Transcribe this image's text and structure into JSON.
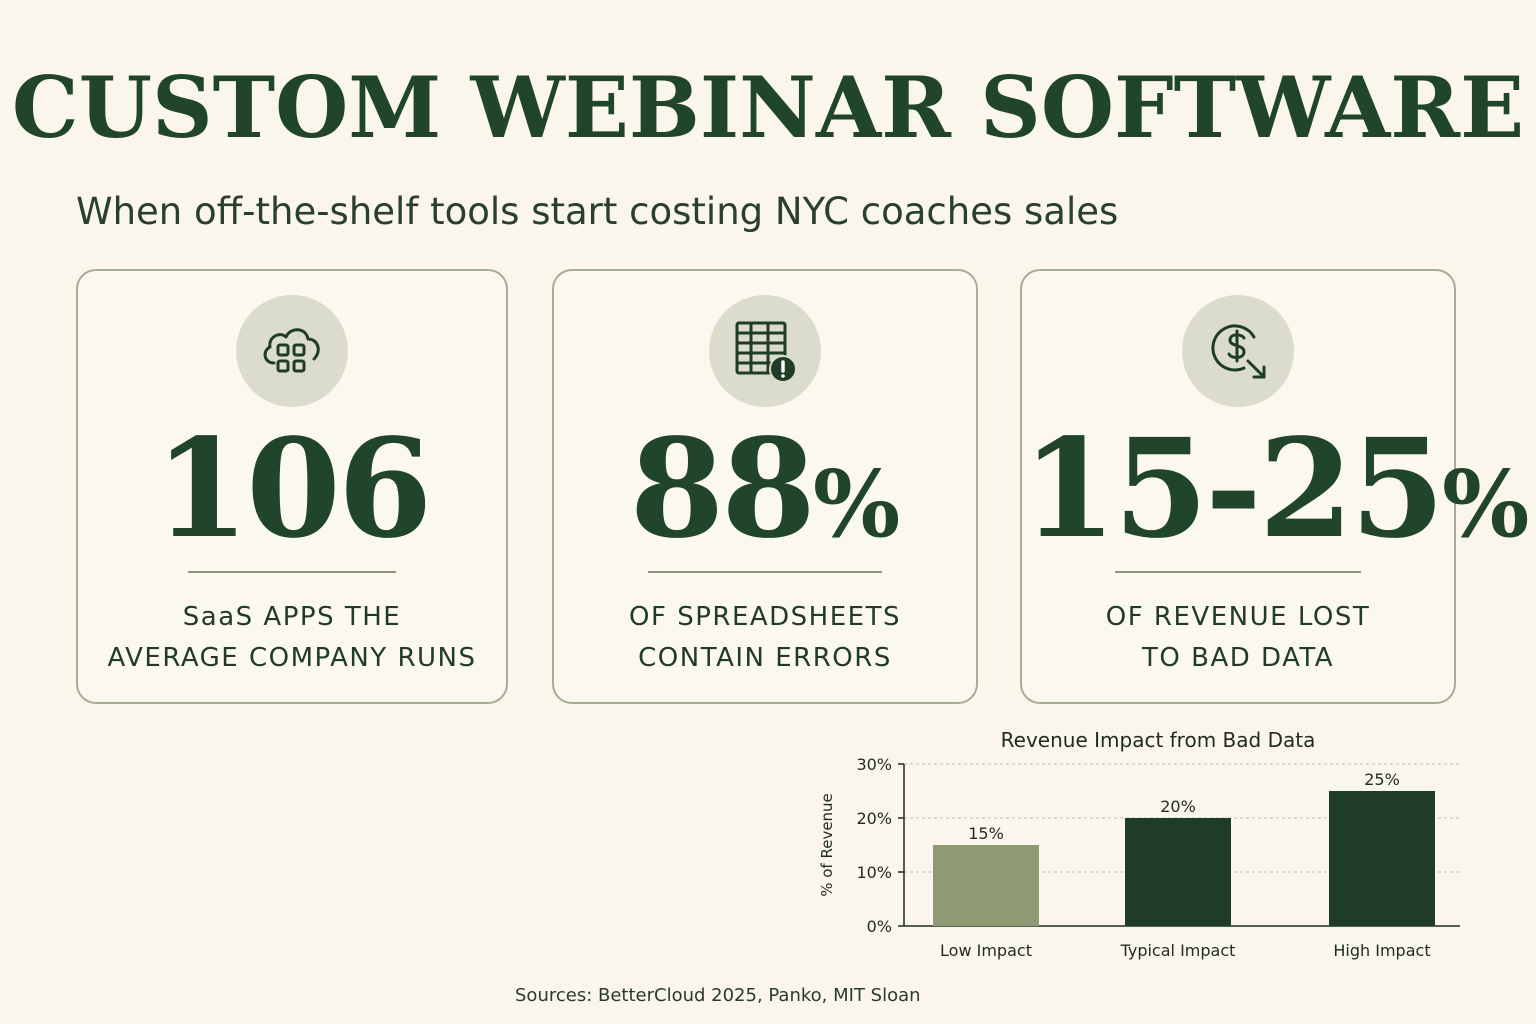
{
  "header": {
    "title": "CUSTOM WEBINAR SOFTWARE",
    "subtitle": "When off-the-shelf tools start costing NYC coaches sales"
  },
  "cards": [
    {
      "icon": "cloud-apps-icon",
      "value": "106",
      "suffix": "",
      "line1": "SaaS APPS THE",
      "line2": "AVERAGE COMPANY RUNS"
    },
    {
      "icon": "spreadsheet-error-icon",
      "value": "88",
      "suffix": "%",
      "line1": "OF SPREADSHEETS",
      "line2": "CONTAIN ERRORS"
    },
    {
      "icon": "dollar-decline-icon",
      "value": "15-25",
      "suffix": "%",
      "line1": "OF REVENUE LOST",
      "line2": "TO BAD DATA"
    }
  ],
  "colors": {
    "primary": "#20452a",
    "accent_light": "#8d9a74",
    "background": "#faf6ec",
    "icon_bg": "#dcdccc"
  },
  "chart_data": {
    "type": "bar",
    "title": "Revenue Impact from Bad Data",
    "ylabel": "% of Revenue",
    "xlabel": "",
    "categories": [
      "Low Impact",
      "Typical Impact",
      "High Impact"
    ],
    "values": [
      15,
      20,
      25
    ],
    "data_labels": [
      "15%",
      "20%",
      "25%"
    ],
    "ylim": [
      0,
      30
    ],
    "yticks": [
      0,
      10,
      20,
      30
    ],
    "ytick_labels": [
      "0%",
      "10%",
      "20%",
      "30%"
    ],
    "grid": "horizontal-dashed",
    "bar_colors": [
      "#8d9a74",
      "#1f3d26",
      "#1f3d26"
    ]
  },
  "footer": {
    "sources": "Sources: BetterCloud 2025, Panko, MIT Sloan"
  }
}
